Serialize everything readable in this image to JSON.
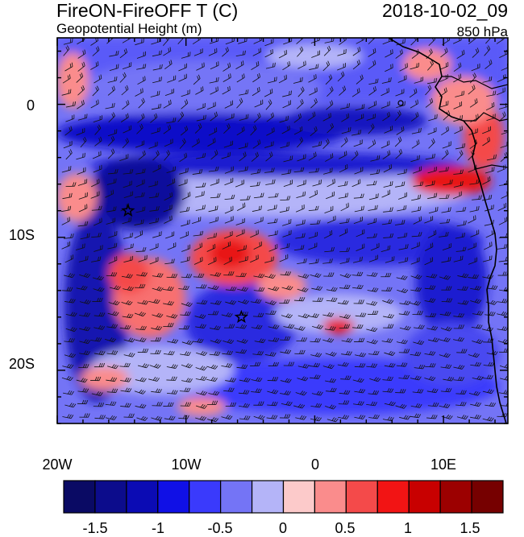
{
  "header": {
    "title": "FireON-FireOFF T (C)",
    "datetime": "2018-10-02_09",
    "subtitle": "Geopotential Height (m)",
    "level": "850 hPa"
  },
  "map": {
    "lon_range": [
      -20,
      15
    ],
    "lat_range": [
      -24,
      5
    ],
    "x_ticks": [
      {
        "value": -20,
        "label": "20W"
      },
      {
        "value": -10,
        "label": "10W"
      },
      {
        "value": 0,
        "label": "0"
      },
      {
        "value": 10,
        "label": "10E"
      }
    ],
    "y_ticks": [
      {
        "value": 0,
        "label": "0"
      },
      {
        "value": -10,
        "label": "10S"
      },
      {
        "value": -20,
        "label": "20S"
      }
    ],
    "markers": [
      {
        "name": "star-marker",
        "lon": -14.5,
        "lat": -8
      },
      {
        "name": "star-marker",
        "lon": -5.7,
        "lat": -16
      }
    ]
  },
  "colorbar": {
    "colors": [
      "#0a0a64",
      "#0c0c8c",
      "#0b0bb4",
      "#1010e6",
      "#3a3afc",
      "#7474f6",
      "#b4b4f8",
      "#fccaca",
      "#fa8c8c",
      "#f44a4a",
      "#f21414",
      "#c80000",
      "#9c0000",
      "#760000"
    ],
    "tick_labels": [
      "-1.5",
      "-1",
      "-0.5",
      "0",
      "0.5",
      "1",
      "1.5"
    ]
  }
}
